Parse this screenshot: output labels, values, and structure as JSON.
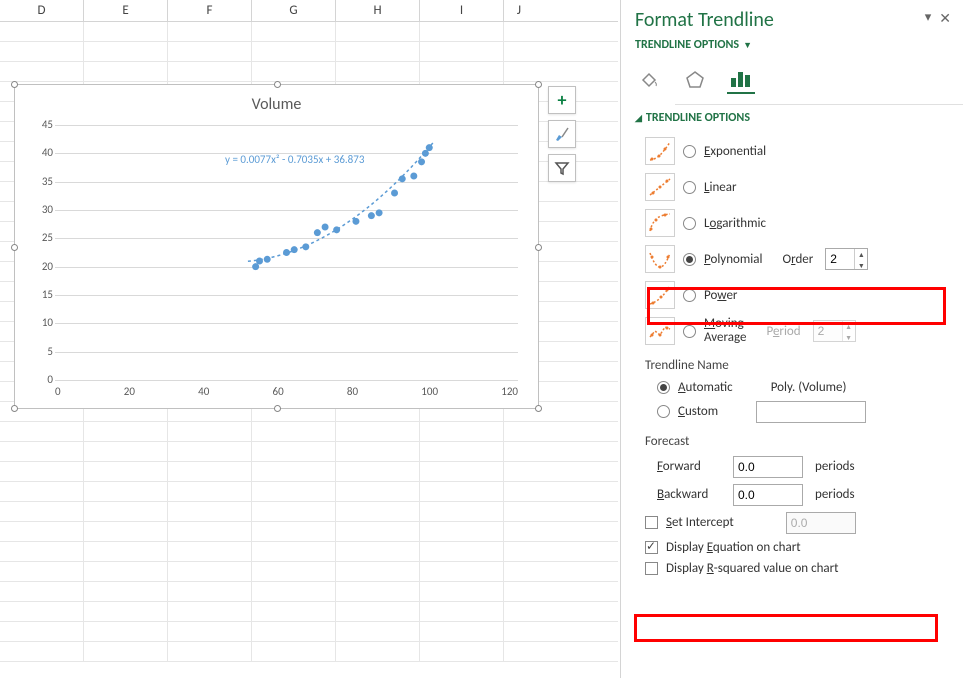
{
  "sheet": {
    "columns": [
      "D",
      "E",
      "F",
      "G",
      "H",
      "I",
      "J"
    ],
    "row_count": 32
  },
  "chart": {
    "title": "Volume",
    "equation": "y = 0.0077x² - 0.7035x + 36.873",
    "x": {
      "min": 0,
      "max": 120,
      "step": 20,
      "ticks": [
        "0",
        "20",
        "40",
        "60",
        "80",
        "100",
        "120"
      ]
    },
    "y": {
      "min": 0,
      "max": 45,
      "step": 5,
      "ticks": [
        "0",
        "5",
        "10",
        "15",
        "20",
        "25",
        "30",
        "35",
        "40",
        "45"
      ]
    },
    "series_color": "#5b9bd5",
    "grid_color": "#d9d9d9",
    "points": [
      {
        "x": 52,
        "y": 20
      },
      {
        "x": 53,
        "y": 21
      },
      {
        "x": 55,
        "y": 21.3
      },
      {
        "x": 60,
        "y": 22.5
      },
      {
        "x": 62,
        "y": 23
      },
      {
        "x": 65,
        "y": 23.5
      },
      {
        "x": 68,
        "y": 26
      },
      {
        "x": 70,
        "y": 27
      },
      {
        "x": 73,
        "y": 26.5
      },
      {
        "x": 78,
        "y": 28
      },
      {
        "x": 82,
        "y": 29
      },
      {
        "x": 84,
        "y": 29.5
      },
      {
        "x": 88,
        "y": 33
      },
      {
        "x": 90,
        "y": 35.5
      },
      {
        "x": 93,
        "y": 36
      },
      {
        "x": 95,
        "y": 38.5
      },
      {
        "x": 96,
        "y": 40
      },
      {
        "x": 97,
        "y": 41
      }
    ],
    "trend_coeffs": {
      "a": 0.0077,
      "b": -0.7035,
      "c": 36.873
    }
  },
  "chart_buttons": {
    "add": "+",
    "brush": "brush",
    "filter": "filter"
  },
  "panel": {
    "title": "Format Trendline",
    "dropdown": "TRENDLINE OPTIONS",
    "section": "TRENDLINE OPTIONS",
    "types": {
      "exponential": "Exponential",
      "linear": "Linear",
      "logarithmic": "Logarithmic",
      "polynomial": "Polynomial",
      "order_label": "Order",
      "order_value": "2",
      "power": "Power",
      "moving_avg": "Moving Average",
      "period_label": "Period",
      "period_value": "2",
      "selected": "polynomial"
    },
    "name": {
      "heading": "Trendline Name",
      "automatic": "Automatic",
      "auto_value": "Poly. (Volume)",
      "custom": "Custom",
      "custom_value": "",
      "selected": "automatic"
    },
    "forecast": {
      "heading": "Forecast",
      "forward_label": "Forward",
      "forward_value": "0.0",
      "backward_label": "Backward",
      "backward_value": "0.0",
      "suffix": "periods"
    },
    "set_intercept": {
      "label": "Set Intercept",
      "value": "0.0",
      "checked": false
    },
    "display_eq": {
      "label": "Display Equation on chart",
      "checked": true
    },
    "display_r2": {
      "label": "Display R-squared value on chart",
      "checked": false
    }
  }
}
